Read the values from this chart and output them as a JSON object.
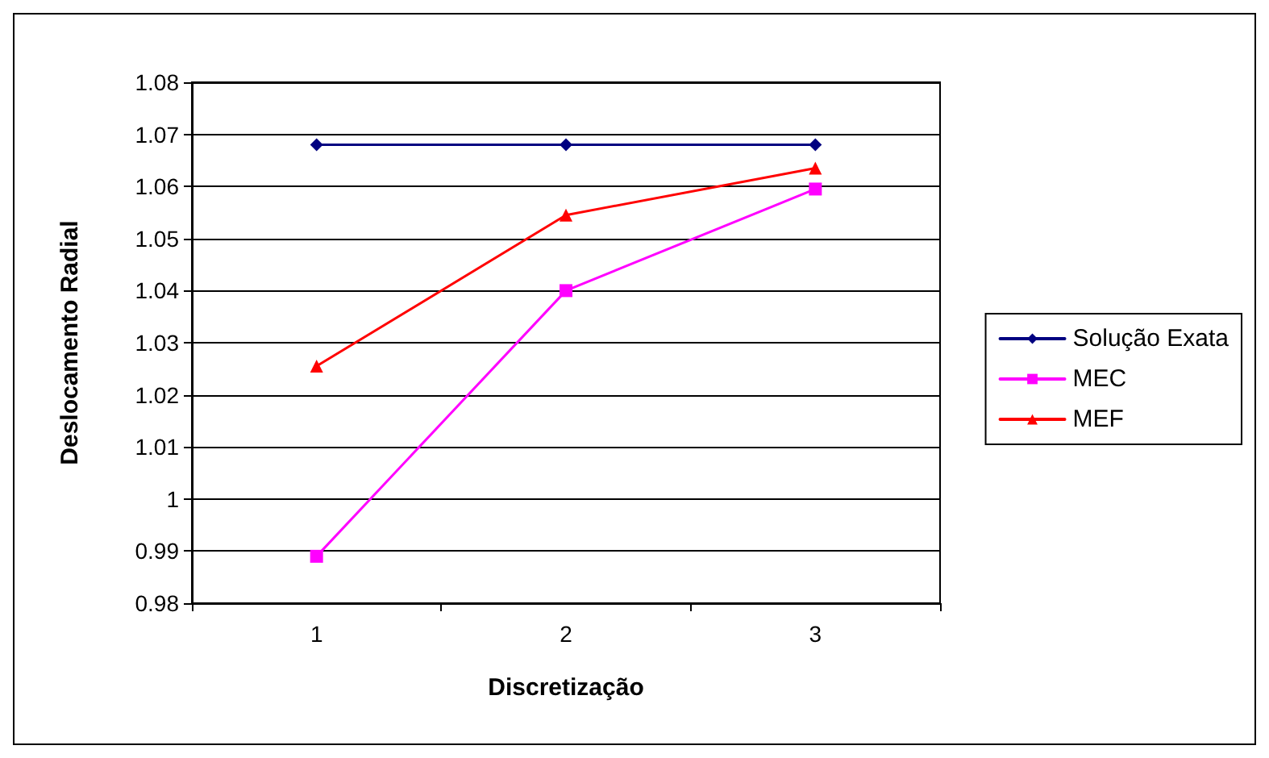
{
  "chart_data": {
    "type": "line",
    "xlabel": "Discretização",
    "ylabel": "Deslocamento Radial",
    "categories": [
      "1",
      "2",
      "3"
    ],
    "series": [
      {
        "name": "Solução Exata",
        "color": "#000080",
        "marker": "diamond",
        "values": [
          1.068,
          1.068,
          1.068
        ]
      },
      {
        "name": "MEC",
        "color": "#ff00ff",
        "marker": "square",
        "values": [
          0.989,
          1.04,
          1.0595
        ]
      },
      {
        "name": "MEF",
        "color": "#ff0000",
        "marker": "triangle",
        "values": [
          1.0255,
          1.0545,
          1.0635
        ]
      }
    ],
    "ylim": [
      0.98,
      1.08
    ],
    "yticks": [
      0.98,
      0.99,
      1,
      1.01,
      1.02,
      1.03,
      1.04,
      1.05,
      1.06,
      1.07,
      1.08
    ],
    "grid": "y",
    "legend": "right"
  }
}
